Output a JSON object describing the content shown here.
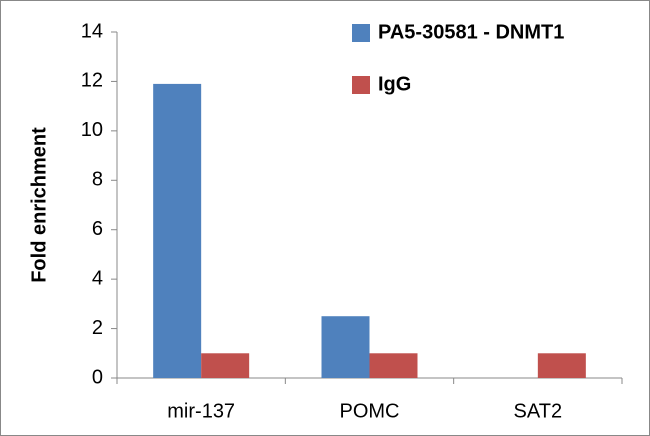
{
  "chart_data": {
    "type": "bar",
    "y_label": "Fold enrichment",
    "categories": [
      "mir-137",
      "POMC",
      "SAT2"
    ],
    "series": [
      {
        "name": "PA5-30581 - DNMT1",
        "color": "#4f81bd",
        "values": [
          11.9,
          2.5,
          0
        ]
      },
      {
        "name": "IgG",
        "color": "#c0504d",
        "values": [
          1,
          1,
          1
        ]
      }
    ],
    "ylim": [
      0,
      14
    ],
    "yticks": [
      0,
      2,
      4,
      6,
      8,
      10,
      12,
      14
    ],
    "grid": false,
    "legend": "upper right"
  }
}
